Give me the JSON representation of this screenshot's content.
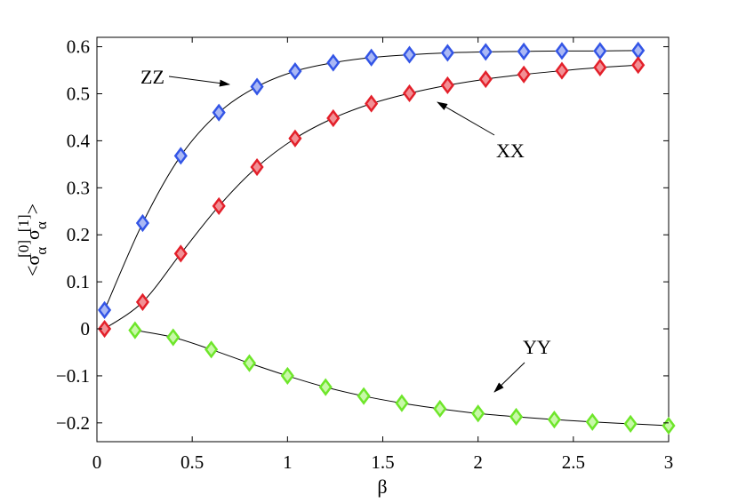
{
  "chart_data": {
    "type": "line",
    "x_label": "β",
    "y_label": {
      "left": "<",
      "symbol": "σ",
      "sub": "α",
      "sup0": "[0]",
      "sup1": "[1]",
      "right": ">"
    },
    "xlim": [
      0,
      3
    ],
    "ylim": [
      -0.24,
      0.62
    ],
    "xticks": [
      0,
      0.5,
      1,
      1.5,
      2,
      2.5,
      3
    ],
    "yticks": [
      {
        "value": -0.2,
        "label": "−0.2"
      },
      {
        "value": -0.1,
        "label": "−0.1"
      },
      0,
      0.1,
      0.2,
      0.3,
      0.4,
      0.5,
      0.6
    ],
    "grid": false,
    "line_color": "#000000",
    "series": [
      {
        "name": "ZZ",
        "color": "#3355e6",
        "fill": "#aab8f5",
        "x": [
          0.04,
          0.24,
          0.44,
          0.64,
          0.84,
          1.04,
          1.24,
          1.44,
          1.64,
          1.84,
          2.04,
          2.24,
          2.44,
          2.64,
          2.84
        ],
        "values": [
          0.04,
          0.225,
          0.368,
          0.46,
          0.515,
          0.548,
          0.566,
          0.577,
          0.583,
          0.587,
          0.589,
          0.59,
          0.591,
          0.591,
          0.592
        ]
      },
      {
        "name": "XX",
        "color": "#e3202a",
        "fill": "#f29095",
        "x": [
          0.04,
          0.24,
          0.44,
          0.64,
          0.84,
          1.04,
          1.24,
          1.44,
          1.64,
          1.84,
          2.04,
          2.24,
          2.44,
          2.64,
          2.84
        ],
        "values": [
          0,
          0.057,
          0.16,
          0.261,
          0.344,
          0.405,
          0.448,
          0.479,
          0.501,
          0.518,
          0.531,
          0.541,
          0.549,
          0.556,
          0.561
        ]
      },
      {
        "name": "YY",
        "color": "#6ee62a",
        "fill": "#c8f8a8",
        "x": [
          0.2,
          0.4,
          0.6,
          0.8,
          1.0,
          1.2,
          1.4,
          1.6,
          1.8,
          2.0,
          2.2,
          2.4,
          2.6,
          2.8,
          3.0
        ],
        "values": [
          -0.003,
          -0.018,
          -0.044,
          -0.073,
          -0.1,
          -0.124,
          -0.143,
          -0.158,
          -0.17,
          -0.18,
          -0.187,
          -0.193,
          -0.198,
          -0.202,
          -0.206
        ]
      }
    ]
  }
}
